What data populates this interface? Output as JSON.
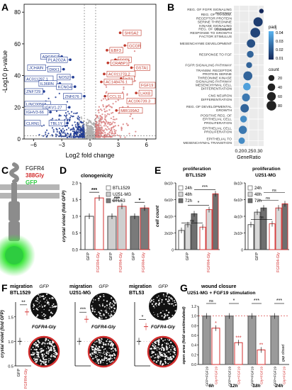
{
  "panel_labels": [
    "A",
    "B",
    "C",
    "D",
    "E",
    "F",
    "G"
  ],
  "chart_data": [
    {
      "panel": "A",
      "type": "scatter",
      "xlabel": "Log2 fold change",
      "ylabel": "-Log10 p-value",
      "xlim": [
        -7,
        7
      ],
      "xticks": [
        -6,
        -3,
        0,
        3,
        6
      ],
      "yticks": [
        0,
        20,
        40,
        60,
        80
      ],
      "up_genes": [
        {
          "label": "SHISA2",
          "x": 3.2,
          "y": 67
        },
        {
          "label": "GCGR",
          "x": 3.7,
          "y": 59
        },
        {
          "label": "EBF3",
          "x": 1.8,
          "y": 56
        },
        {
          "label": "FGF5",
          "x": 2.7,
          "y": 50
        },
        {
          "label": "CRABP1",
          "x": 1.9,
          "y": 48
        },
        {
          "label": "GSTA1",
          "x": 4.4,
          "y": 45
        },
        {
          "label": "AC011270.2",
          "x": 1.5,
          "y": 41
        },
        {
          "label": "NT3",
          "x": 3.3,
          "y": 38
        },
        {
          "label": "AC148476.1",
          "x": 1.2,
          "y": 36
        },
        {
          "label": "FGF19",
          "x": 5.5,
          "y": 34
        },
        {
          "label": "LHX8",
          "x": 4.9,
          "y": 29
        },
        {
          "label": "CCL11",
          "x": 1.6,
          "y": 27
        },
        {
          "label": "AC106739.3",
          "x": 4.2,
          "y": 24
        },
        {
          "label": "MIR199A2",
          "x": 2.8,
          "y": 18
        }
      ],
      "down_genes": [
        {
          "label": "ADGRG7",
          "x": -3.0,
          "y": 52
        },
        {
          "label": "JCHAIN",
          "x": -4.4,
          "y": 45
        },
        {
          "label": "PLA2G2A",
          "x": -2.1,
          "y": 50
        },
        {
          "label": "DKK1",
          "x": -2.8,
          "y": 44
        },
        {
          "label": "AC011297.1",
          "x": -5.0,
          "y": 38
        },
        {
          "label": "NOS2",
          "x": -1.8,
          "y": 39
        },
        {
          "label": "IL36RN",
          "x": -3.2,
          "y": 35
        },
        {
          "label": "KCNG4",
          "x": -1.6,
          "y": 33
        },
        {
          "label": "ZNF729",
          "x": -4.9,
          "y": 30
        },
        {
          "label": "ZNF676",
          "x": -0.6,
          "y": 27
        },
        {
          "label": "LINC00568",
          "x": -5.3,
          "y": 22
        },
        {
          "label": "IGKV1-27",
          "x": -2.2,
          "y": 20
        },
        {
          "label": "IGHV3-66",
          "x": -4.2,
          "y": 17
        },
        {
          "label": "CLRN1",
          "x": -5.8,
          "y": 10
        },
        {
          "label": "TBL1Y",
          "x": -2.4,
          "y": 10
        }
      ]
    },
    {
      "panel": "B",
      "type": "scatter",
      "xlabel": "GeneRatio",
      "xticks": [
        0.2,
        0.25,
        0.3
      ],
      "xlim": [
        0.17,
        0.33
      ],
      "legend_padj_title": "padj",
      "legend_padj_ticks": [
        "0.04",
        "0.03",
        "0.02",
        "0.01"
      ],
      "legend_count_title": "count",
      "legend_count_values": [
        20,
        40,
        60,
        80
      ],
      "terms": [
        {
          "label": "REG. OF FGFR SIGNALING PATHWAY",
          "x": 0.318,
          "count": 8,
          "padj": 0.005
        },
        {
          "label": "REG. OF TRANSM. RECEPTOR PROTEIN SERINE THREONINE KINASE SIGNALING PATHWAY",
          "x": 0.3,
          "count": 70,
          "padj": 0.01
        },
        {
          "label": "REG. OF CELLULAR RESPONSE TO GROWTH FACTOR STIMULUS",
          "x": 0.285,
          "count": 80,
          "padj": 0.012
        },
        {
          "label": "MESENCHYME DEVELOPMENT",
          "x": 0.262,
          "count": 55,
          "padj": 0.015
        },
        {
          "label": "RESPONSE TO FGF",
          "x": 0.258,
          "count": 30,
          "padj": 0.02
        },
        {
          "label": "FGFR SIGNALING PATHWAY",
          "x": 0.252,
          "count": 20,
          "padj": 0.02
        },
        {
          "label": "TRANSM. RECEPTOR PROTEIN SERINE THREONINE KINASE SIGNALING PATHWAY",
          "x": 0.245,
          "count": 65,
          "padj": 0.02
        },
        {
          "label": "MESENCHYMAL CELL DIFFERENTIATION",
          "x": 0.24,
          "count": 40,
          "padj": 0.035
        },
        {
          "label": "CNS NEURON DIFFERENTIATION",
          "x": 0.235,
          "count": 45,
          "padj": 0.025
        },
        {
          "label": "REG. OF DEVELOPMENTAL GROWTH",
          "x": 0.228,
          "count": 55,
          "padj": 0.02
        },
        {
          "label": "POSITIVE REG. OF EPITHELIAL CELL PROLIFERATION",
          "x": 0.222,
          "count": 30,
          "padj": 0.03
        },
        {
          "label": "EPITHELIAL CELL PROLIFERATION",
          "x": 0.218,
          "count": 50,
          "padj": 0.025
        },
        {
          "label": "EPITHELIAL TO MESENCHYMAL TRANSITION",
          "x": 0.212,
          "count": 25,
          "padj": 0.03
        }
      ]
    },
    {
      "panel": "D",
      "type": "bar",
      "title": "clonogenicity",
      "ylabel": "crystal violet (fold GFP)",
      "ylim": [
        0,
        2.0
      ],
      "yticks": [
        "0.0",
        "0.5",
        "1.0",
        "1.5",
        "2.0"
      ],
      "legend": [
        "BTL1529",
        "U251-MG",
        "BTL53"
      ],
      "groups": [
        {
          "name": "BTL1529",
          "values": [
            1.0,
            1.55
          ],
          "sig": "***"
        },
        {
          "name": "U251-MG",
          "values": [
            1.0,
            1.3
          ],
          "sig": "***"
        },
        {
          "name": "BTL53",
          "values": [
            1.0,
            1.25
          ],
          "sig": "*"
        }
      ],
      "categories": [
        "GFP",
        "FGFR4-Gly"
      ]
    },
    {
      "panel": "E",
      "type": "bar",
      "charts": [
        {
          "title": "proliferation BTL1529",
          "ylabel": "cell count",
          "yticks": [
            "0",
            "2x10⁵",
            "4x10⁵",
            "6x10⁵",
            "8x10⁵"
          ],
          "ymax": 8,
          "legend": [
            "24h",
            "48h",
            "72h"
          ],
          "categories": [
            "GFP",
            "FGFR4-Gly"
          ],
          "values": [
            [
              2.3,
              3.0,
              4.3
            ],
            [
              2.7,
              4.8,
              6.7
            ]
          ],
          "sig": [
            "ns",
            "*",
            "***"
          ]
        },
        {
          "title": "proliferation U251-MG",
          "ylabel": "",
          "yticks": [
            "0",
            "2x10⁵",
            "4x10⁵",
            "6x10⁵",
            "8x10⁵"
          ],
          "ymax": 8,
          "legend": [
            "24h",
            "48h",
            "72h"
          ],
          "categories": [
            "GFP",
            "FGFR4-Gly"
          ],
          "values": [
            [
              3.0,
              4.5,
              5.0
            ],
            [
              3.1,
              5.0,
              5.5
            ]
          ],
          "sig": [
            "ns",
            "ns",
            "ns"
          ]
        }
      ]
    },
    {
      "panel": "F",
      "type": "scatter",
      "ylabel": "crystal violet (fold GFP)",
      "yticks": [
        "0.5",
        "1.0",
        "1.5"
      ],
      "categories": [
        "GFP",
        "FGFR4-Gly"
      ],
      "subpanels": [
        {
          "title": "migration BTL1529",
          "sig": "**",
          "gfp": 1.0,
          "mut": 1.6
        },
        {
          "title": "migration U251-MG",
          "sig": "***",
          "gfp": 1.0,
          "mut": 1.45
        },
        {
          "title": "migration BTL53",
          "sig": "*",
          "gfp": 1.0,
          "mut": 1.3
        }
      ],
      "img_gfp_label": "GFP",
      "img_mut_label": "FGFR4-Gly"
    },
    {
      "panel": "G",
      "type": "bar",
      "title": "wound closure",
      "subtitle": "U251-MG + FGF19 stimulation",
      "ylabel": "open area (fold unstimulated)",
      "yticks": [
        "0.0",
        "0.2",
        "0.4",
        "0.6",
        "0.8",
        "1.0",
        "1.2"
      ],
      "categories": [
        "GFP+FGF19",
        "Gly+FGF19"
      ],
      "timepoints": [
        {
          "label": "6h",
          "values": [
            1.0,
            0.75
          ],
          "top": "ns",
          "star": "*"
        },
        {
          "label": "12h",
          "values": [
            1.0,
            0.45
          ],
          "top": "*",
          "star": "***"
        },
        {
          "label": "18h",
          "values": [
            1.0,
            0.3
          ],
          "top": "***",
          "star": "**"
        },
        {
          "label": "24h",
          "values": [
            1.0,
            null
          ],
          "top": "***",
          "star": ""
        }
      ],
      "gap_note": "gap closed"
    }
  ],
  "panel_c": {
    "line1": "FGFR4",
    "line2": "388Gly",
    "line3": "GFP",
    "color_receptor": "#8c8c8c",
    "color_mutation": "#d32f2f",
    "color_gfp": "#2ecc40"
  },
  "colors": {
    "up": "#c0392b",
    "down": "#1f3a93",
    "ns": "#b0b0b0",
    "accent_red": "#d32f2f"
  }
}
